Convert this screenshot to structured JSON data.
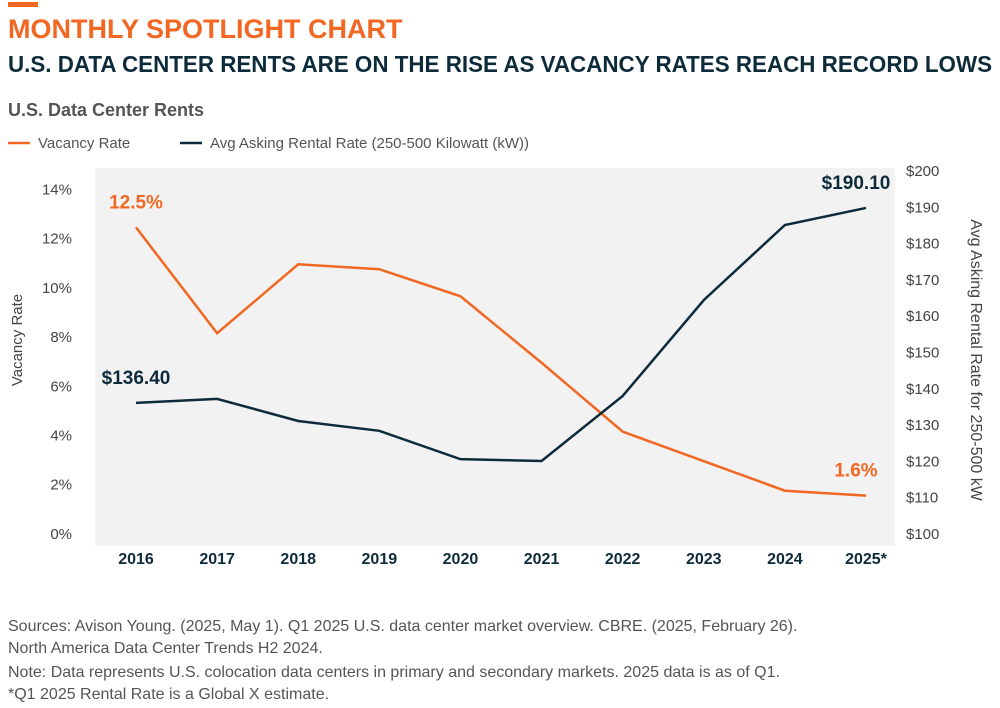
{
  "chart_data": {
    "type": "line",
    "kicker": "MONTHLY SPOTLIGHT CHART",
    "title": "U.S. DATA CENTER RENTS ARE ON THE RISE AS VACANCY RATES REACH RECORD LOWS",
    "subtitle": "U.S. Data Center Rents",
    "categories": [
      "2016",
      "2017",
      "2018",
      "2019",
      "2020",
      "2021",
      "2022",
      "2023",
      "2024",
      "2025*"
    ],
    "series": [
      {
        "name": "Vacancy Rate",
        "color": "#f26722",
        "values": [
          12.5,
          8.2,
          11.0,
          10.8,
          9.7,
          7.0,
          4.2,
          3.0,
          1.8,
          1.6
        ],
        "value_labels": [
          "12.5%",
          null,
          null,
          null,
          null,
          null,
          null,
          null,
          null,
          "1.6%"
        ]
      },
      {
        "name": "Avg Asking Rental Rate (250-500 Kilowatt (kW))",
        "color": "#0d2b3a",
        "axis": "y2",
        "values": [
          136.4,
          137.5,
          131.4,
          128.7,
          120.9,
          120.4,
          138.3,
          164.7,
          185.4,
          190.1
        ],
        "value_labels": [
          "$136.40",
          null,
          null,
          null,
          null,
          null,
          null,
          null,
          null,
          "$190.10"
        ]
      }
    ],
    "ylabel": "Vacancy Rate",
    "y2label": "Avg Asking Rental Rate for 250-500 kW",
    "ylim": [
      0,
      14.75
    ],
    "yticks": [
      {
        "value": 0,
        "label": "0%"
      },
      {
        "value": 2,
        "label": "2%"
      },
      {
        "value": 4,
        "label": "4%"
      },
      {
        "value": 6,
        "label": "6%"
      },
      {
        "value": 8,
        "label": "8%"
      },
      {
        "value": 10,
        "label": "10%"
      },
      {
        "value": 12,
        "label": "12%"
      },
      {
        "value": 14,
        "label": "14%"
      }
    ],
    "y2lim": [
      100,
      200
    ],
    "y2ticks": [
      {
        "value": 100,
        "label": "$100"
      },
      {
        "value": 110,
        "label": "$110"
      },
      {
        "value": 120,
        "label": "$120"
      },
      {
        "value": 130,
        "label": "$130"
      },
      {
        "value": 140,
        "label": "$140"
      },
      {
        "value": 150,
        "label": "$150"
      },
      {
        "value": 160,
        "label": "$160"
      },
      {
        "value": 170,
        "label": "$170"
      },
      {
        "value": 180,
        "label": "$180"
      },
      {
        "value": 190,
        "label": "$190"
      },
      {
        "value": 200,
        "label": "$200"
      }
    ],
    "grid": false,
    "notes": [
      "Sources: Avison Young. (2025, May 1). Q1 2025 U.S. data center market overview. CBRE. (2025, February 26).",
      "North America Data Center Trends H2 2024.",
      "Note: Data represents U.S. colocation data centers in primary and secondary markets. 2025 data is as of Q1.",
      "*Q1 2025 Rental Rate is a Global X estimate."
    ]
  }
}
